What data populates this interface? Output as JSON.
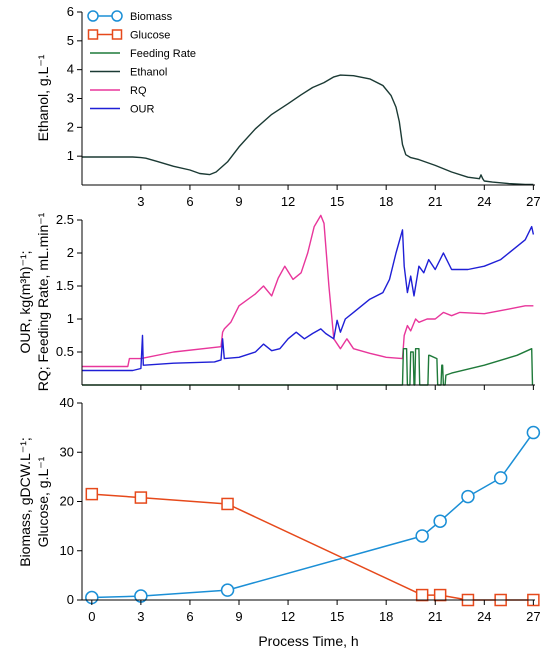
{
  "chart_data": [
    {
      "type": "line",
      "panel": "ethanol",
      "ylabel": "Ethanol, g.L⁻¹",
      "xlim": [
        -0.6,
        27.1
      ],
      "ylim": [
        0,
        6
      ],
      "xticks": [
        3,
        6,
        9,
        12,
        15,
        18,
        21,
        24,
        27
      ],
      "yticks": [
        1,
        2,
        3,
        4,
        5,
        6
      ],
      "series": [
        {
          "name": "Ethanol",
          "color": "#1b3a34",
          "x": [
            -0.6,
            2.5,
            3.0,
            3.3,
            4.0,
            5.0,
            6.0,
            6.6,
            7.2,
            7.6,
            8.3,
            9.0,
            10.0,
            11.0,
            12.0,
            12.8,
            13.5,
            14.2,
            14.8,
            15.2,
            16.0,
            17.0,
            17.8,
            18.3,
            18.6,
            18.8,
            19.0,
            19.2,
            19.5,
            20.0,
            21.0,
            22.0,
            23.0,
            23.7,
            23.8,
            23.9,
            24.0,
            24.5,
            25.5,
            26.5,
            27.0
          ],
          "y": [
            0.97,
            0.97,
            0.95,
            0.93,
            0.82,
            0.65,
            0.52,
            0.4,
            0.36,
            0.45,
            0.8,
            1.32,
            1.95,
            2.45,
            2.82,
            3.13,
            3.38,
            3.55,
            3.75,
            3.81,
            3.79,
            3.68,
            3.45,
            3.1,
            2.7,
            2.2,
            1.4,
            1.05,
            0.95,
            0.88,
            0.68,
            0.45,
            0.27,
            0.22,
            0.35,
            0.22,
            0.14,
            0.1,
            0.05,
            0.02,
            0.02
          ]
        }
      ]
    },
    {
      "type": "line",
      "panel": "our-rq-feeding",
      "ylabel": "OUR, kg(m³h)⁻¹;",
      "ylabel2": "RQ; Feeding Rate, mL.min⁻¹",
      "xlim": [
        -0.6,
        27.1
      ],
      "ylim": [
        0,
        2.5
      ],
      "xticks": [
        3,
        6,
        9,
        12,
        15,
        18,
        21,
        24,
        27
      ],
      "yticks": [
        0.5,
        1,
        1.5,
        2,
        2.5
      ],
      "series": [
        {
          "name": "RQ",
          "color": "#e8369b",
          "x": [
            -0.6,
            2.2,
            2.3,
            3.0,
            5.0,
            7.9,
            8.0,
            8.1,
            8.5,
            9.0,
            10.0,
            10.5,
            11.0,
            11.4,
            11.8,
            12.3,
            12.8,
            13.2,
            13.6,
            14.0,
            14.2,
            14.5,
            14.8,
            15.2,
            15.6,
            16.0,
            17.0,
            18.0,
            19.0,
            19.1,
            19.3,
            19.5,
            19.8,
            20.0,
            20.5,
            21.0,
            21.5,
            22.0,
            22.5,
            24.0,
            25.5,
            26.5,
            27.0
          ],
          "y": [
            0.28,
            0.28,
            0.4,
            0.4,
            0.5,
            0.58,
            0.8,
            0.85,
            0.95,
            1.2,
            1.38,
            1.5,
            1.35,
            1.62,
            1.8,
            1.6,
            1.7,
            2.0,
            2.4,
            2.57,
            2.45,
            1.5,
            0.7,
            0.55,
            0.7,
            0.55,
            0.48,
            0.42,
            0.4,
            0.75,
            0.9,
            0.82,
            1.0,
            0.95,
            1.0,
            1.0,
            1.1,
            1.05,
            1.1,
            1.08,
            1.15,
            1.2,
            1.2
          ]
        },
        {
          "name": "OUR",
          "color": "#1f1fd6",
          "x": [
            -0.6,
            2.5,
            3.0,
            3.1,
            3.15,
            3.2,
            5.0,
            7.5,
            7.9,
            8.0,
            8.1,
            9.0,
            10.0,
            10.5,
            11.0,
            11.5,
            12.0,
            12.5,
            13.0,
            13.5,
            14.0,
            14.3,
            14.8,
            15.0,
            15.2,
            15.5,
            16.0,
            17.0,
            17.8,
            18.2,
            18.6,
            19.0,
            19.1,
            19.3,
            19.5,
            19.7,
            20.0,
            20.3,
            20.6,
            21.0,
            21.5,
            22.0,
            23.0,
            24.0,
            25.0,
            26.0,
            26.5,
            26.9,
            27.0
          ],
          "y": [
            0.22,
            0.22,
            0.25,
            0.75,
            0.3,
            0.3,
            0.33,
            0.35,
            0.38,
            0.7,
            0.4,
            0.42,
            0.5,
            0.62,
            0.52,
            0.55,
            0.7,
            0.8,
            0.7,
            0.78,
            0.85,
            0.78,
            0.7,
            0.98,
            0.8,
            1.0,
            1.1,
            1.3,
            1.4,
            1.6,
            2.0,
            2.35,
            1.8,
            1.4,
            1.65,
            1.35,
            1.8,
            1.7,
            1.9,
            1.75,
            2.0,
            1.75,
            1.75,
            1.8,
            1.9,
            2.1,
            2.2,
            2.4,
            2.28
          ]
        },
        {
          "name": "Feeding Rate",
          "color": "#1f7a3a",
          "x": [
            -0.6,
            19.0,
            19.05,
            19.25,
            19.3,
            19.45,
            19.5,
            19.65,
            19.7,
            19.75,
            19.8,
            20.0,
            20.05,
            20.55,
            20.6,
            20.65,
            21.1,
            21.15,
            21.35,
            21.4,
            21.45,
            21.5,
            21.6,
            21.65,
            22.0,
            24.0,
            26.0,
            26.9,
            26.95
          ],
          "y": [
            0.0,
            0.0,
            0.55,
            0.55,
            0.0,
            0.0,
            0.5,
            0.5,
            0.0,
            0.0,
            0.55,
            0.55,
            0.0,
            0.0,
            0.45,
            0.45,
            0.4,
            0.0,
            0.0,
            0.3,
            0.3,
            0.0,
            0.0,
            0.15,
            0.18,
            0.3,
            0.45,
            0.55,
            0.0
          ]
        }
      ]
    },
    {
      "type": "line",
      "panel": "biomass-glucose",
      "ylabel": "Biomass, gDCW.L⁻¹;",
      "ylabel2": "Glucose, g.L⁻¹",
      "xlabel": "Process Time, h",
      "xlim": [
        -0.6,
        27.1
      ],
      "ylim": [
        0,
        40
      ],
      "xticks": [
        0,
        3,
        6,
        9,
        12,
        15,
        18,
        21,
        24,
        27
      ],
      "yticks": [
        0,
        10,
        20,
        30,
        40
      ],
      "series": [
        {
          "name": "Biomass",
          "color": "#1b8fd6",
          "marker": "circle",
          "x": [
            0,
            3,
            8.3,
            20.2,
            21.3,
            23,
            25,
            27
          ],
          "y": [
            0.5,
            0.8,
            2.0,
            13.0,
            16.0,
            21.0,
            24.8,
            34.0
          ]
        },
        {
          "name": "Glucose",
          "color": "#e6491b",
          "marker": "square",
          "x": [
            0,
            3,
            8.3,
            20.2,
            21.3,
            23,
            25,
            27
          ],
          "y": [
            21.5,
            20.8,
            19.5,
            1.0,
            1.0,
            0.0,
            0.0,
            0.0
          ]
        }
      ]
    }
  ],
  "legend": {
    "placement": "top-left",
    "items": [
      {
        "label": "Biomass",
        "color": "#1b8fd6",
        "style": "line-circle"
      },
      {
        "label": "Glucose",
        "color": "#e6491b",
        "style": "line-square"
      },
      {
        "label": "Feeding Rate",
        "color": "#1f7a3a",
        "style": "line"
      },
      {
        "label": "Ethanol",
        "color": "#1b3a34",
        "style": "line"
      },
      {
        "label": "RQ",
        "color": "#e8369b",
        "style": "line"
      },
      {
        "label": "OUR",
        "color": "#1f1fd6",
        "style": "line"
      }
    ]
  }
}
